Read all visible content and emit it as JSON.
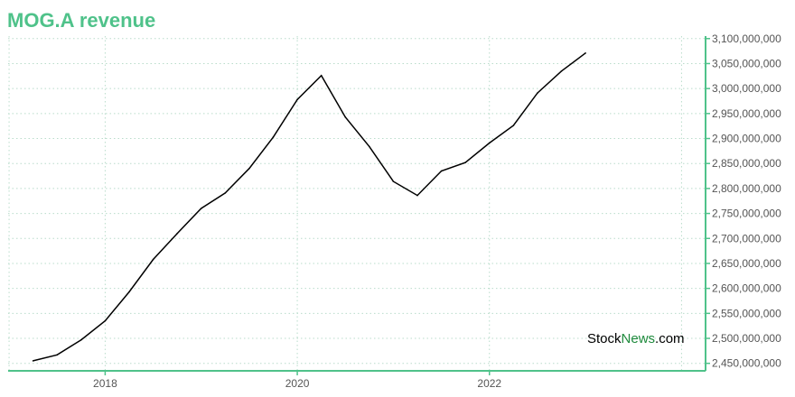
{
  "chart_data": {
    "type": "line",
    "title": "MOG.A revenue",
    "xlabel": "",
    "ylabel": "",
    "x_tick_labels": [
      "2018",
      "2020",
      "2022"
    ],
    "x_tick_values": [
      2018.0,
      2020.0,
      2022.0
    ],
    "y_tick_labels": [
      "2,450,000,000",
      "2,500,000,000",
      "2,550,000,000",
      "2,600,000,000",
      "2,650,000,000",
      "2,700,000,000",
      "2,750,000,000",
      "2,800,000,000",
      "2,850,000,000",
      "2,900,000,000",
      "2,950,000,000",
      "3,000,000,000",
      "3,050,000,000",
      "3,100,000,000"
    ],
    "xlim": [
      2016.99,
      2024.25
    ],
    "ylim": [
      2435000000,
      3105000000
    ],
    "y_axis_side": "right",
    "grid": true,
    "colors": {
      "title": "#4fc28a",
      "axis": "#4fc28a",
      "grid": "#b9dccb",
      "line": "#000000"
    },
    "series": [
      {
        "x": [
          2017.25,
          2017.5,
          2017.75,
          2018.0,
          2018.25,
          2018.5,
          2018.75,
          2019.0,
          2019.25,
          2019.5,
          2019.75,
          2020.0,
          2020.25,
          2020.5,
          2020.75,
          2021.0,
          2021.25,
          2021.5,
          2021.75,
          2022.0,
          2022.25,
          2022.5,
          2022.75,
          2023.0
        ],
        "values": [
          2455000000,
          2467000000,
          2497000000,
          2535000000,
          2593000000,
          2658000000,
          2710000000,
          2760000000,
          2791000000,
          2840000000,
          2903000000,
          2978000000,
          3026000000,
          2943000000,
          2884000000,
          2814000000,
          2786000000,
          2835000000,
          2852000000,
          2891000000,
          2926000000,
          2991000000,
          3035000000,
          3071000000
        ]
      }
    ]
  },
  "watermark": {
    "part1": "Stock",
    "part2": "News",
    "part3": ".com"
  }
}
